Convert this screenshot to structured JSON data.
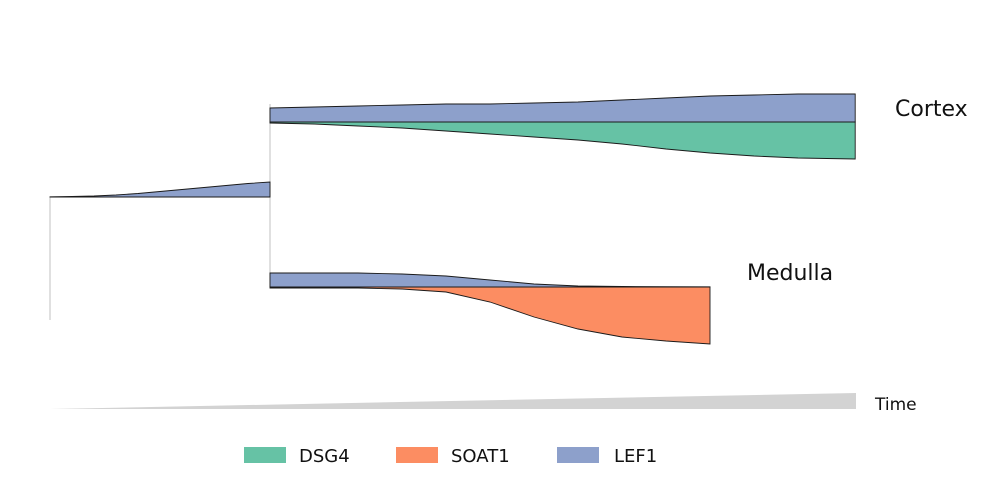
{
  "chart_data": {
    "type": "area",
    "subtype": "branching stream plot (gene expression along pseudotime trajectory)",
    "time_axis_label": "Time",
    "colors": {
      "DSG4": "#66c2a5",
      "SOAT1": "#fc8d62",
      "LEF1": "#8da0cb"
    },
    "legend": [
      {
        "name": "DSG4",
        "color": "#66c2a5"
      },
      {
        "name": "SOAT1",
        "color": "#fc8d62"
      },
      {
        "name": "LEF1",
        "color": "#8da0cb"
      }
    ],
    "legend_position": "bottom",
    "branches": [
      {
        "id": "root",
        "label": "",
        "x": [
          0,
          0.1,
          0.2,
          0.3,
          0.4,
          0.5,
          0.6,
          0.7,
          0.8,
          0.9,
          1.0
        ],
        "series": [
          {
            "name": "DSG4",
            "values": [
              0,
              0,
              0,
              0,
              0,
              0,
              0,
              0,
              0,
              0,
              0
            ]
          },
          {
            "name": "SOAT1",
            "values": [
              0,
              0,
              0,
              0,
              0,
              0,
              0,
              0,
              0,
              0,
              0
            ]
          },
          {
            "name": "LEF1",
            "values": [
              0.2,
              0.5,
              1.0,
              2.0,
              3.5,
              5.5,
              7.5,
              9.5,
              11.5,
              13.5,
              15
            ]
          }
        ]
      },
      {
        "id": "cortex",
        "label": "Cortex",
        "x": [
          1.0,
          1.2,
          1.4,
          1.6,
          1.8,
          2.0,
          2.2,
          2.4,
          2.6,
          2.8,
          3.0,
          3.2,
          3.4,
          3.66
        ],
        "series": [
          {
            "name": "DSG4",
            "values": [
              1,
              2,
              4,
              6,
              9,
              12,
              15,
              18,
              22,
              27,
              31,
              34,
              36,
              37
            ]
          },
          {
            "name": "SOAT1",
            "values": [
              0,
              0,
              0,
              0,
              0,
              0,
              0,
              0,
              0,
              0,
              0,
              0,
              0,
              0
            ]
          },
          {
            "name": "LEF1",
            "values": [
              14,
              15,
              16,
              17,
              18,
              18,
              19,
              20,
              22,
              24,
              26,
              27,
              28,
              28
            ]
          }
        ]
      },
      {
        "id": "medulla",
        "label": "Medulla",
        "x": [
          1.0,
          1.2,
          1.4,
          1.6,
          1.8,
          2.0,
          2.2,
          2.4,
          2.6,
          2.8,
          3.0
        ],
        "series": [
          {
            "name": "DSG4",
            "values": [
              0,
              0,
              0,
              0,
              0,
              0,
              0,
              0,
              0,
              0,
              0
            ]
          },
          {
            "name": "SOAT1",
            "values": [
              1,
              1,
              1,
              2,
              5,
              15,
              30,
              42,
              50,
              54,
              57
            ]
          },
          {
            "name": "LEF1",
            "values": [
              14,
              14,
              14,
              13,
              11,
              7,
              3,
              1,
              0.5,
              0.3,
              0.2
            ]
          }
        ]
      }
    ]
  }
}
